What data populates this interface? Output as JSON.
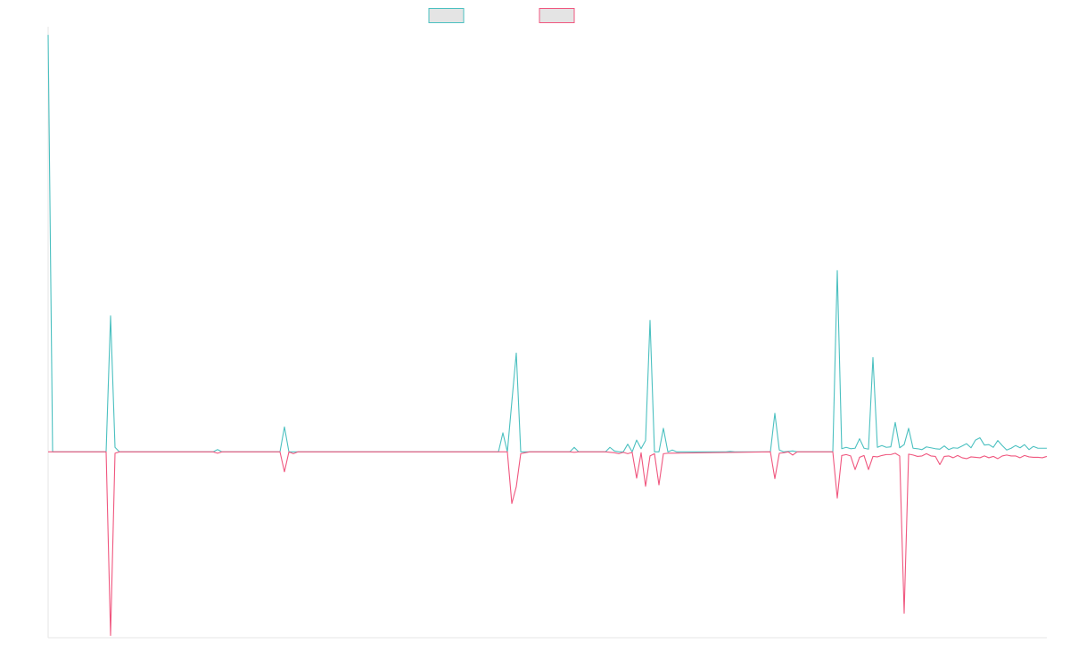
{
  "chart_data": {
    "type": "line",
    "title": "",
    "xlabel": "",
    "ylabel": "",
    "grid": false,
    "legend": "top-center",
    "x_count": 225,
    "ylim": [
      -41,
      93
    ],
    "series": [
      {
        "name": "",
        "color": "#4bc0c0",
        "fill": "#e4e4e4",
        "points": [
          [
            0,
            92
          ],
          [
            1,
            0
          ],
          [
            13,
            0
          ],
          [
            14,
            30
          ],
          [
            15,
            1
          ],
          [
            16,
            0
          ],
          [
            37,
            0
          ],
          [
            38,
            0.5
          ],
          [
            39,
            0
          ],
          [
            52,
            0
          ],
          [
            53,
            5.5
          ],
          [
            54,
            0
          ],
          [
            55,
            0
          ],
          [
            101,
            0
          ],
          [
            102,
            4.2
          ],
          [
            103,
            0
          ],
          [
            104,
            11
          ],
          [
            105,
            21.8
          ],
          [
            106,
            0
          ],
          [
            117,
            0
          ],
          [
            118,
            1
          ],
          [
            119,
            0
          ],
          [
            125,
            0
          ],
          [
            126,
            1
          ],
          [
            127,
            0.2
          ],
          [
            128,
            0
          ],
          [
            129,
            0
          ],
          [
            130,
            1.7
          ],
          [
            131,
            0
          ],
          [
            132,
            2.6
          ],
          [
            133,
            0.7
          ],
          [
            134,
            2.5
          ],
          [
            135,
            29
          ],
          [
            136,
            0
          ],
          [
            137,
            0
          ],
          [
            138,
            5.2
          ],
          [
            139,
            0
          ],
          [
            140,
            0.4
          ],
          [
            141,
            0
          ],
          [
            152,
            0
          ],
          [
            153,
            0.1
          ],
          [
            154,
            0
          ],
          [
            162,
            0
          ],
          [
            163,
            8.5
          ],
          [
            164,
            0.4
          ],
          [
            165,
            0
          ],
          [
            167,
            0.2
          ],
          [
            168,
            0
          ],
          [
            175,
            0
          ],
          [
            176,
            0
          ],
          [
            177,
            40
          ],
          [
            178,
            0.7
          ],
          [
            179,
            1
          ],
          [
            180,
            0.7
          ],
          [
            181,
            0.8
          ],
          [
            182,
            2.9
          ],
          [
            183,
            0.8
          ],
          [
            184,
            0.6
          ],
          [
            185,
            20.8
          ],
          [
            186,
            1
          ],
          [
            187,
            1.4
          ],
          [
            188,
            1
          ],
          [
            189,
            1.1
          ],
          [
            190,
            6.5
          ],
          [
            191,
            0.9
          ],
          [
            192,
            1.6
          ],
          [
            193,
            5.2
          ],
          [
            194,
            0.8
          ],
          [
            195,
            0.7
          ],
          [
            196,
            0.5
          ],
          [
            197,
            1.1
          ],
          [
            198,
            0.9
          ],
          [
            199,
            0.7
          ],
          [
            200,
            0.6
          ],
          [
            201,
            1.3
          ],
          [
            202,
            0.5
          ],
          [
            203,
            0.9
          ],
          [
            204,
            0.8
          ],
          [
            205,
            1.3
          ],
          [
            206,
            1.8
          ],
          [
            207,
            0.9
          ],
          [
            208,
            2.6
          ],
          [
            209,
            3.1
          ],
          [
            210,
            1.5
          ],
          [
            211,
            1.6
          ],
          [
            212,
            1
          ],
          [
            213,
            2.5
          ],
          [
            214,
            1.4
          ],
          [
            215,
            0.4
          ],
          [
            216,
            0.8
          ],
          [
            217,
            1.4
          ],
          [
            218,
            0.9
          ],
          [
            219,
            1.6
          ],
          [
            220,
            0.5
          ],
          [
            221,
            1.2
          ],
          [
            222,
            0.8
          ],
          [
            223,
            0.8
          ],
          [
            224,
            0.8
          ]
        ]
      },
      {
        "name": "",
        "color": "#f0577f",
        "fill": "#e4e4e4",
        "points": [
          [
            0,
            0
          ],
          [
            1,
            0
          ],
          [
            13,
            0
          ],
          [
            14,
            -40.5
          ],
          [
            15,
            -0.3
          ],
          [
            16,
            0
          ],
          [
            37,
            0
          ],
          [
            38,
            -0.3
          ],
          [
            39,
            0
          ],
          [
            52,
            0
          ],
          [
            53,
            -4.4
          ],
          [
            54,
            0
          ],
          [
            55,
            -0.4
          ],
          [
            56,
            0
          ],
          [
            101,
            0
          ],
          [
            102,
            0
          ],
          [
            103,
            0
          ],
          [
            104,
            -11.4
          ],
          [
            105,
            -7.7
          ],
          [
            106,
            -0.4
          ],
          [
            107,
            -0.2
          ],
          [
            108,
            0
          ],
          [
            117,
            0
          ],
          [
            118,
            -0.1
          ],
          [
            119,
            0
          ],
          [
            125,
            0
          ],
          [
            126,
            -0.1
          ],
          [
            127,
            -0.2
          ],
          [
            128,
            -0.4
          ],
          [
            129,
            -0.1
          ],
          [
            130,
            -0.4
          ],
          [
            131,
            -0.1
          ],
          [
            132,
            -5.8
          ],
          [
            133,
            -0.2
          ],
          [
            134,
            -7.6
          ],
          [
            135,
            -0.9
          ],
          [
            136,
            -0.4
          ],
          [
            137,
            -7.3
          ],
          [
            138,
            -0.4
          ],
          [
            139,
            -0.3
          ],
          [
            140,
            -0.3
          ],
          [
            162,
            0
          ],
          [
            163,
            -5.9
          ],
          [
            164,
            -0.3
          ],
          [
            165,
            -0.2
          ],
          [
            166,
            0
          ],
          [
            167,
            -0.7
          ],
          [
            168,
            0
          ],
          [
            175,
            0
          ],
          [
            176,
            0
          ],
          [
            177,
            -10.2
          ],
          [
            178,
            -0.8
          ],
          [
            179,
            -0.6
          ],
          [
            180,
            -0.9
          ],
          [
            181,
            -3.9
          ],
          [
            182,
            -1.2
          ],
          [
            183,
            -0.8
          ],
          [
            184,
            -3.9
          ],
          [
            185,
            -1
          ],
          [
            186,
            -1.1
          ],
          [
            187,
            -0.8
          ],
          [
            188,
            -0.6
          ],
          [
            189,
            -0.6
          ],
          [
            190,
            -0.3
          ],
          [
            191,
            -0.9
          ],
          [
            192,
            -35.6
          ],
          [
            193,
            -0.5
          ],
          [
            194,
            -0.7
          ],
          [
            195,
            -1
          ],
          [
            196,
            -0.9
          ],
          [
            197,
            -0.4
          ],
          [
            198,
            -0.9
          ],
          [
            199,
            -1
          ],
          [
            200,
            -2.8
          ],
          [
            201,
            -1
          ],
          [
            202,
            -0.9
          ],
          [
            203,
            -1.3
          ],
          [
            204,
            -0.8
          ],
          [
            205,
            -1.3
          ],
          [
            206,
            -1.5
          ],
          [
            207,
            -1.1
          ],
          [
            208,
            -1.2
          ],
          [
            209,
            -1.3
          ],
          [
            210,
            -0.9
          ],
          [
            211,
            -1.3
          ],
          [
            212,
            -1
          ],
          [
            213,
            -1.5
          ],
          [
            214,
            -0.9
          ],
          [
            215,
            -0.7
          ],
          [
            216,
            -0.9
          ],
          [
            217,
            -0.9
          ],
          [
            218,
            -1.3
          ],
          [
            219,
            -0.8
          ],
          [
            220,
            -1.1
          ],
          [
            221,
            -1.2
          ],
          [
            222,
            -1.2
          ],
          [
            223,
            -1.3
          ],
          [
            224,
            -1
          ]
        ]
      }
    ]
  }
}
